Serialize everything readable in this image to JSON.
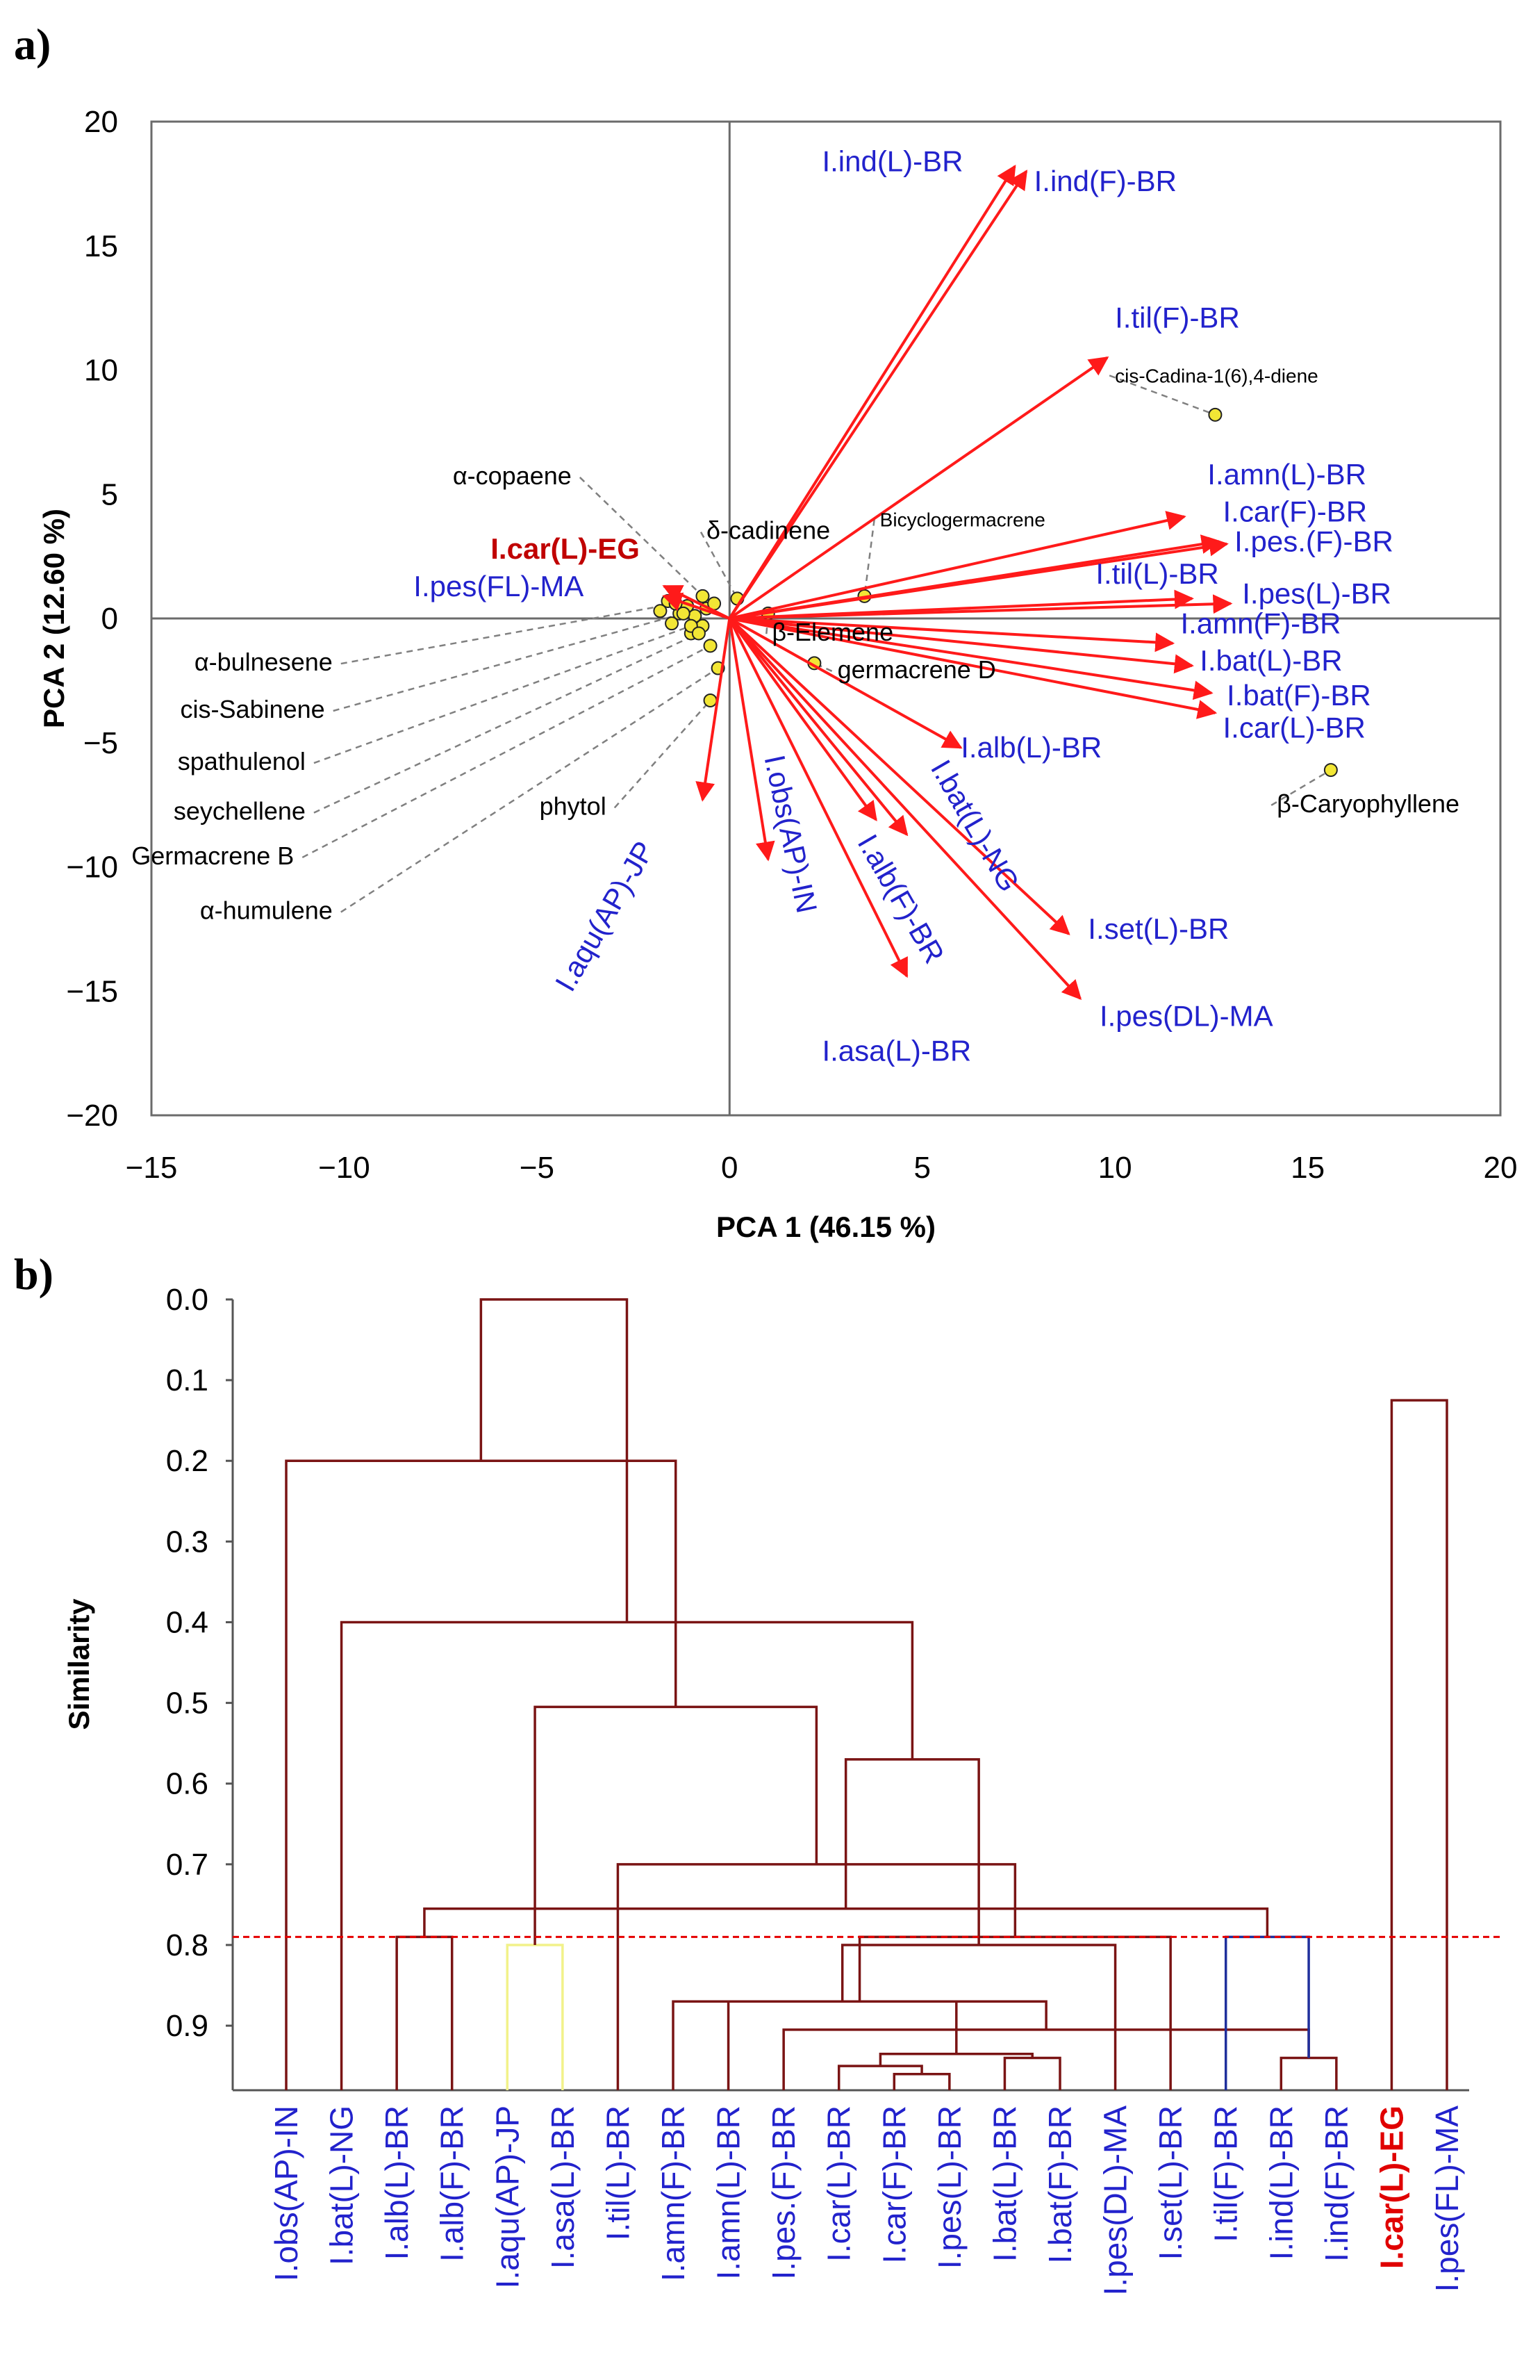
{
  "colors": {
    "vector": "#ff1a1a",
    "label": "#2222cc",
    "highlight": "#c00000",
    "tree": "#7a1414",
    "tree_yellow": "#f2f28a",
    "tree_blue": "#1f2f9c",
    "cutoff": "#e60000",
    "point_fill": "#f2e635",
    "point_stroke": "#222222"
  },
  "chart_data": [
    {
      "type": "scatter",
      "panel": "a)",
      "xlabel": "PCA 1 (46.15 %)",
      "ylabel": "PCA 2 (12.60 %)",
      "xlim": [
        -15,
        20
      ],
      "ylim": [
        -20,
        20
      ],
      "xticks": [
        -15,
        -10,
        -5,
        0,
        5,
        10,
        15,
        20
      ],
      "yticks": [
        -20,
        -15,
        -10,
        -5,
        0,
        5,
        10,
        15,
        20
      ],
      "vectors": [
        {
          "name": "I.ind(L)-BR",
          "x": 7.4,
          "y": 18.2,
          "lx": 2.4,
          "ly": 18.0
        },
        {
          "name": "I.ind(F)-BR",
          "x": 7.7,
          "y": 18.0,
          "lx": 7.9,
          "ly": 17.2
        },
        {
          "name": "I.til(F)-BR",
          "x": 9.8,
          "y": 10.5,
          "lx": 10.0,
          "ly": 11.7
        },
        {
          "name": "I.amn(L)-BR",
          "x": 11.8,
          "y": 4.1,
          "lx": 12.4,
          "ly": 5.4
        },
        {
          "name": "I.car(F)-BR",
          "x": 12.7,
          "y": 3.1,
          "lx": 12.8,
          "ly": 3.9
        },
        {
          "name": "I.pes.(F)-BR",
          "x": 12.9,
          "y": 3.0,
          "lx": 13.1,
          "ly": 2.7
        },
        {
          "name": "I.til(L)-BR",
          "x": 12.0,
          "y": 0.8,
          "lx": 9.5,
          "ly": 1.4
        },
        {
          "name": "I.pes(L)-BR",
          "x": 13.0,
          "y": 0.6,
          "lx": 13.3,
          "ly": 0.6
        },
        {
          "name": "I.amn(F)-BR",
          "x": 11.5,
          "y": -1.0,
          "lx": 11.7,
          "ly": -0.6
        },
        {
          "name": "I.bat(L)-BR",
          "x": 12.0,
          "y": -1.9,
          "lx": 12.2,
          "ly": -2.1
        },
        {
          "name": "I.bat(F)-BR",
          "x": 12.5,
          "y": -3.0,
          "lx": 12.9,
          "ly": -3.5
        },
        {
          "name": "I.car(L)-BR",
          "x": 12.6,
          "y": -3.8,
          "lx": 12.8,
          "ly": -4.8
        },
        {
          "name": "I.alb(L)-BR",
          "x": 6.0,
          "y": -5.2,
          "lx": 6.0,
          "ly": -5.6
        },
        {
          "name": "I.set(L)-BR",
          "x": 8.8,
          "y": -12.7,
          "lx": 9.3,
          "ly": -12.9
        },
        {
          "name": "I.pes(DL)-MA",
          "x": 9.1,
          "y": -15.3,
          "lx": 9.6,
          "ly": -16.4
        },
        {
          "name": "I.bat(L)-NG",
          "x": 4.6,
          "y": -8.7,
          "lx": 5.2,
          "ly": -6.0,
          "rot": 60
        },
        {
          "name": "I.alb(F)-BR",
          "x": 3.8,
          "y": -8.1,
          "lx": 3.3,
          "ly": -9.0,
          "rot": 60
        },
        {
          "name": "I.asa(L)-BR",
          "x": 4.6,
          "y": -14.4,
          "lx": 2.4,
          "ly": -17.8
        },
        {
          "name": "I.obs(AP)-IN",
          "x": 1.0,
          "y": -9.7,
          "lx": 0.9,
          "ly": -5.6,
          "rot": 78
        },
        {
          "name": "I.aqu(AP)-JP",
          "x": -0.7,
          "y": -7.3,
          "lx": -4.1,
          "ly": -15.1,
          "rot": -60
        },
        {
          "name": "I.car(L)-EG",
          "x": -1.7,
          "y": 1.3,
          "lx": -6.2,
          "ly": 2.4,
          "highlight": true
        },
        {
          "name": "I.pes(FL)-MA",
          "x": -1.7,
          "y": 0.9,
          "lx": -8.2,
          "ly": 0.9
        }
      ],
      "compounds": [
        {
          "name": "cis-Cadina-1(6),4-diene",
          "x": 12.6,
          "y": 8.2,
          "lx": 10.0,
          "ly": 9.5,
          "small": true
        },
        {
          "name": "β-Caryophyllene",
          "x": 15.6,
          "y": -6.1,
          "lx": 14.2,
          "ly": -7.8
        },
        {
          "name": "Bicyclogermacrene",
          "x": 3.5,
          "y": 0.9,
          "lx": 3.9,
          "ly": 3.7,
          "small": true
        },
        {
          "name": "germacrene D",
          "x": 2.2,
          "y": -1.8,
          "lx": 2.8,
          "ly": -2.4
        },
        {
          "name": "β-Elemene",
          "x": 1.0,
          "y": 0.2,
          "lx": 1.1,
          "ly": -0.9
        },
        {
          "name": "δ-cadinene",
          "x": 0.2,
          "y": 0.8,
          "lx": -0.6,
          "ly": 3.2
        },
        {
          "name": "α-copaene",
          "x": -0.7,
          "y": 0.9,
          "lx": -4.1,
          "ly": 5.4
        },
        {
          "name": "α-bulnesene",
          "x": -1.4,
          "y": 0.6,
          "lx": -10.3,
          "ly": -2.1
        },
        {
          "name": "cis-Sabinene",
          "x": -1.2,
          "y": 0.2,
          "lx": -10.5,
          "ly": -4.0
        },
        {
          "name": "spathulenol",
          "x": -1.0,
          "y": -0.3,
          "lx": -11.0,
          "ly": -6.1
        },
        {
          "name": "seychellene",
          "x": -0.8,
          "y": -0.6,
          "lx": -11.0,
          "ly": -8.1
        },
        {
          "name": "Germacrene B",
          "x": -0.5,
          "y": -1.1,
          "lx": -11.3,
          "ly": -9.9
        },
        {
          "name": "phytol",
          "x": -0.5,
          "y": -3.3,
          "lx": -3.2,
          "ly": -7.9
        },
        {
          "name": "α-humulene",
          "x": -0.3,
          "y": -2.0,
          "lx": -10.3,
          "ly": -12.1
        }
      ],
      "extra_points": [
        {
          "x": -1.6,
          "y": 0.7
        },
        {
          "x": -1.3,
          "y": 0.2
        },
        {
          "x": -1.1,
          "y": 0.5
        },
        {
          "x": -0.9,
          "y": 0.1
        },
        {
          "x": -0.6,
          "y": 0.4
        },
        {
          "x": -1.5,
          "y": -0.2
        },
        {
          "x": -0.4,
          "y": 0.6
        },
        {
          "x": -1.0,
          "y": -0.6
        },
        {
          "x": -0.7,
          "y": -0.3
        },
        {
          "x": -1.8,
          "y": 0.3
        }
      ]
    },
    {
      "type": "dendrogram",
      "panel": "b)",
      "ylabel": "Similarity",
      "ylim": [
        0.0,
        0.98
      ],
      "yticks": [
        0.0,
        0.1,
        0.2,
        0.3,
        0.4,
        0.5,
        0.6,
        0.7,
        0.8,
        0.9
      ],
      "cutoff": 0.79,
      "leaves": [
        {
          "name": "I.obs(AP)-IN"
        },
        {
          "name": "I.bat(L)-NG"
        },
        {
          "name": "I.alb(L)-BR"
        },
        {
          "name": "I.alb(F)-BR"
        },
        {
          "name": "I.aqu(AP)-JP"
        },
        {
          "name": "I.asa(L)-BR"
        },
        {
          "name": "I.til(L)-BR"
        },
        {
          "name": "I.amn(F)-BR"
        },
        {
          "name": "I.amn(L)-BR"
        },
        {
          "name": "I.pes.(F)-BR"
        },
        {
          "name": "I.car(L)-BR"
        },
        {
          "name": "I.car(F)-BR"
        },
        {
          "name": "I.pes(L)-BR"
        },
        {
          "name": "I.bat(L)-BR"
        },
        {
          "name": "I.bat(F)-BR"
        },
        {
          "name": "I.pes(DL)-MA"
        },
        {
          "name": "I.set(L)-BR"
        },
        {
          "name": "I.til(F)-BR"
        },
        {
          "name": "I.ind(L)-BR"
        },
        {
          "name": "I.ind(F)-BR"
        },
        {
          "name": "I.car(L)-EG",
          "highlight": true
        },
        {
          "name": "I.pes(FL)-MA"
        }
      ],
      "merges": [
        {
          "a": 11,
          "b": 12,
          "h": 0.96
        },
        {
          "a": 10,
          "b": 22,
          "h": 0.95
        },
        {
          "a": 13,
          "b": 14,
          "h": 0.94
        },
        {
          "a": 18,
          "b": 19,
          "h": 0.94
        },
        {
          "a": 23,
          "b": 24,
          "h": 0.935
        },
        {
          "a": 9,
          "b": 25,
          "h": 0.905
        },
        {
          "a": 8,
          "b": 26,
          "h": 0.87
        },
        {
          "a": 7,
          "b": 27,
          "h": 0.87
        },
        {
          "a": 28,
          "b": 15,
          "h": 0.8
        },
        {
          "a": 4,
          "b": 5,
          "h": 0.8,
          "color": "yellow"
        },
        {
          "a": 17,
          "b": 25,
          "h": 0.79,
          "color": "blue"
        },
        {
          "a": 2,
          "b": 3,
          "h": 0.79
        },
        {
          "a": 29,
          "b": 16,
          "h": 0.79
        },
        {
          "a": 33,
          "b": 32,
          "h": 0.755
        },
        {
          "a": 6,
          "b": 34,
          "h": 0.7
        },
        {
          "a": 30,
          "b": 35,
          "h": 0.57
        },
        {
          "a": 31,
          "b": 36,
          "h": 0.505
        },
        {
          "a": 1,
          "b": 37,
          "h": 0.4
        },
        {
          "a": 0,
          "b": 38,
          "h": 0.2
        },
        {
          "a": 20,
          "b": 21,
          "h": 0.125
        },
        {
          "a": 39,
          "b": 40,
          "h": 0.0
        }
      ]
    }
  ]
}
